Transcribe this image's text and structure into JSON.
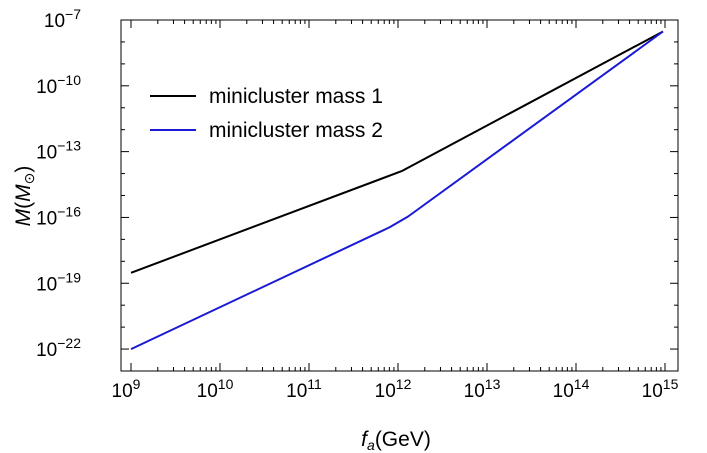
{
  "chart_data": {
    "type": "line",
    "title": "",
    "xlabel": {
      "base": "f",
      "sub": "a",
      "unit": "(GeV)"
    },
    "ylabel": {
      "base": "M",
      "open": "(",
      "inner": "M",
      "sub": "⊙",
      "close": ")"
    },
    "x_scale": "log",
    "y_scale": "log",
    "xlim": [
      1000000000.0,
      1000000000000000.0
    ],
    "ylim": [
      1e-23,
      1e-07
    ],
    "x_ticks": [
      {
        "value": 1000000000.0,
        "base": "10",
        "exp": "9"
      },
      {
        "value": 10000000000.0,
        "base": "10",
        "exp": "10"
      },
      {
        "value": 100000000000.0,
        "base": "10",
        "exp": "11"
      },
      {
        "value": 1000000000000.0,
        "base": "10",
        "exp": "12"
      },
      {
        "value": 10000000000000.0,
        "base": "10",
        "exp": "13"
      },
      {
        "value": 100000000000000.0,
        "base": "10",
        "exp": "14"
      },
      {
        "value": 1000000000000000.0,
        "base": "10",
        "exp": "15"
      }
    ],
    "y_ticks": [
      {
        "value": 1e-22,
        "base": "10",
        "exp": "−22"
      },
      {
        "value": 1e-19,
        "base": "10",
        "exp": "−19"
      },
      {
        "value": 1e-16,
        "base": "10",
        "exp": "−16"
      },
      {
        "value": 1e-13,
        "base": "10",
        "exp": "−13"
      },
      {
        "value": 1e-10,
        "base": "10",
        "exp": "−10"
      },
      {
        "value": 1e-07,
        "base": "10",
        "exp": "−7"
      }
    ],
    "legend_position": "top-left",
    "series": [
      {
        "name": "minicluster mass 1",
        "color": "#000000",
        "points": [
          [
            1000000000.0,
            3e-19
          ],
          [
            1100000000000.0,
            1.3e-14
          ],
          [
            950000000000000.0,
            3e-08
          ]
        ]
      },
      {
        "name": "minicluster mass 2",
        "color": "#1a1ad6",
        "points": [
          [
            1000000000.0,
            1e-22
          ],
          [
            800000000000.0,
            3.5e-17
          ],
          [
            1300000000000.0,
            1.1e-16
          ],
          [
            950000000000000.0,
            3e-08
          ]
        ]
      }
    ]
  }
}
